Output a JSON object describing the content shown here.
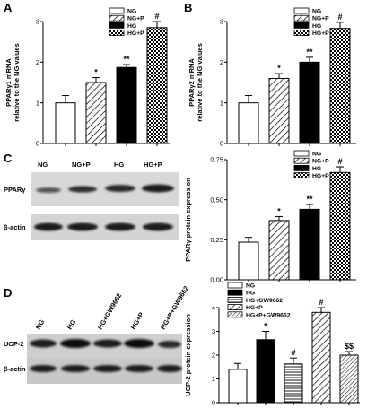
{
  "panel_letters": [
    "A",
    "B",
    "C",
    "D"
  ],
  "blots": {
    "C": {
      "lanes": [
        "NG",
        "NG+P",
        "HG",
        "HG+P"
      ],
      "rows": [
        "PPARγ",
        "β-actin"
      ]
    },
    "D": {
      "lanes": [
        "NG",
        "HG",
        "HG+GW9662",
        "HG+P",
        "HG+P+GW9662"
      ],
      "rows": [
        "UCP-2",
        "β-actin"
      ]
    }
  },
  "colors": {
    "bar_fill": "#ffffff",
    "solid": "#000000",
    "axis": "#000000"
  },
  "chart_data": [
    {
      "id": "A",
      "type": "bar",
      "ylabel": "PPARγ1 mRNA relative to the NG values",
      "ylim": [
        0,
        3
      ],
      "yticks": [
        "0",
        "1",
        "2",
        "3"
      ],
      "categories": [
        "NG",
        "NG+P",
        "HG",
        "HG+P"
      ],
      "values": [
        1.0,
        1.5,
        1.87,
        2.85
      ],
      "errors": [
        0.18,
        0.12,
        0.07,
        0.15
      ],
      "significance": [
        "",
        "*",
        "**",
        "#"
      ],
      "patterns": [
        "empty",
        "diag-right",
        "solid",
        "checker"
      ],
      "legend": [
        "NG",
        "NG+P",
        "HG",
        "HG+P"
      ],
      "legend_position": "top-left"
    },
    {
      "id": "B",
      "type": "bar",
      "ylabel": "PPARγ2 mRNA relative to the NG values",
      "ylim": [
        0,
        3
      ],
      "yticks": [
        "0",
        "1",
        "2",
        "3"
      ],
      "categories": [
        "NG",
        "NG+P",
        "HG",
        "HG+P"
      ],
      "values": [
        1.0,
        1.6,
        2.0,
        2.83
      ],
      "errors": [
        0.18,
        0.12,
        0.12,
        0.15
      ],
      "significance": [
        "",
        "*",
        "**",
        "#"
      ],
      "patterns": [
        "empty",
        "diag-right",
        "solid",
        "checker"
      ],
      "legend": [
        "NG",
        "NG+P",
        "HG",
        "HG+P"
      ],
      "legend_position": "top-left"
    },
    {
      "id": "C",
      "type": "bar",
      "ylabel": "PPARγ protein expression",
      "ylim": [
        0,
        0.75
      ],
      "yticks": [
        "0.00",
        "0.25",
        "0.50",
        "0.75"
      ],
      "categories": [
        "NG",
        "NG+P",
        "HG",
        "HG+P"
      ],
      "values": [
        0.235,
        0.37,
        0.44,
        0.67
      ],
      "errors": [
        0.03,
        0.025,
        0.03,
        0.035
      ],
      "significance": [
        "",
        "*",
        "**",
        "#"
      ],
      "patterns": [
        "empty",
        "diag-right",
        "solid",
        "checker"
      ],
      "legend": [
        "NG",
        "NG+P",
        "HG",
        "HG+P"
      ],
      "legend_position": "top-left"
    },
    {
      "id": "D",
      "type": "bar",
      "ylabel": "UCP-2 protein expression",
      "ylim": [
        0,
        4
      ],
      "yticks": [
        "0",
        "1",
        "2",
        "3",
        "4"
      ],
      "categories": [
        "NG",
        "HG",
        "HG+GW9662",
        "HG+P",
        "HG+P+GW9662"
      ],
      "values": [
        1.4,
        2.65,
        1.63,
        3.8,
        2.0
      ],
      "errors": [
        0.25,
        0.35,
        0.25,
        0.2,
        0.15
      ],
      "significance": [
        "",
        "*",
        "#",
        "#",
        "$$"
      ],
      "patterns": [
        "empty",
        "solid",
        "horiz",
        "diag-right",
        "hatch-dense"
      ],
      "legend": [
        "NG",
        "HG",
        "HG+GW9662",
        "HG+P",
        "HG+P+GW9662"
      ],
      "legend_position": "top-left"
    }
  ]
}
